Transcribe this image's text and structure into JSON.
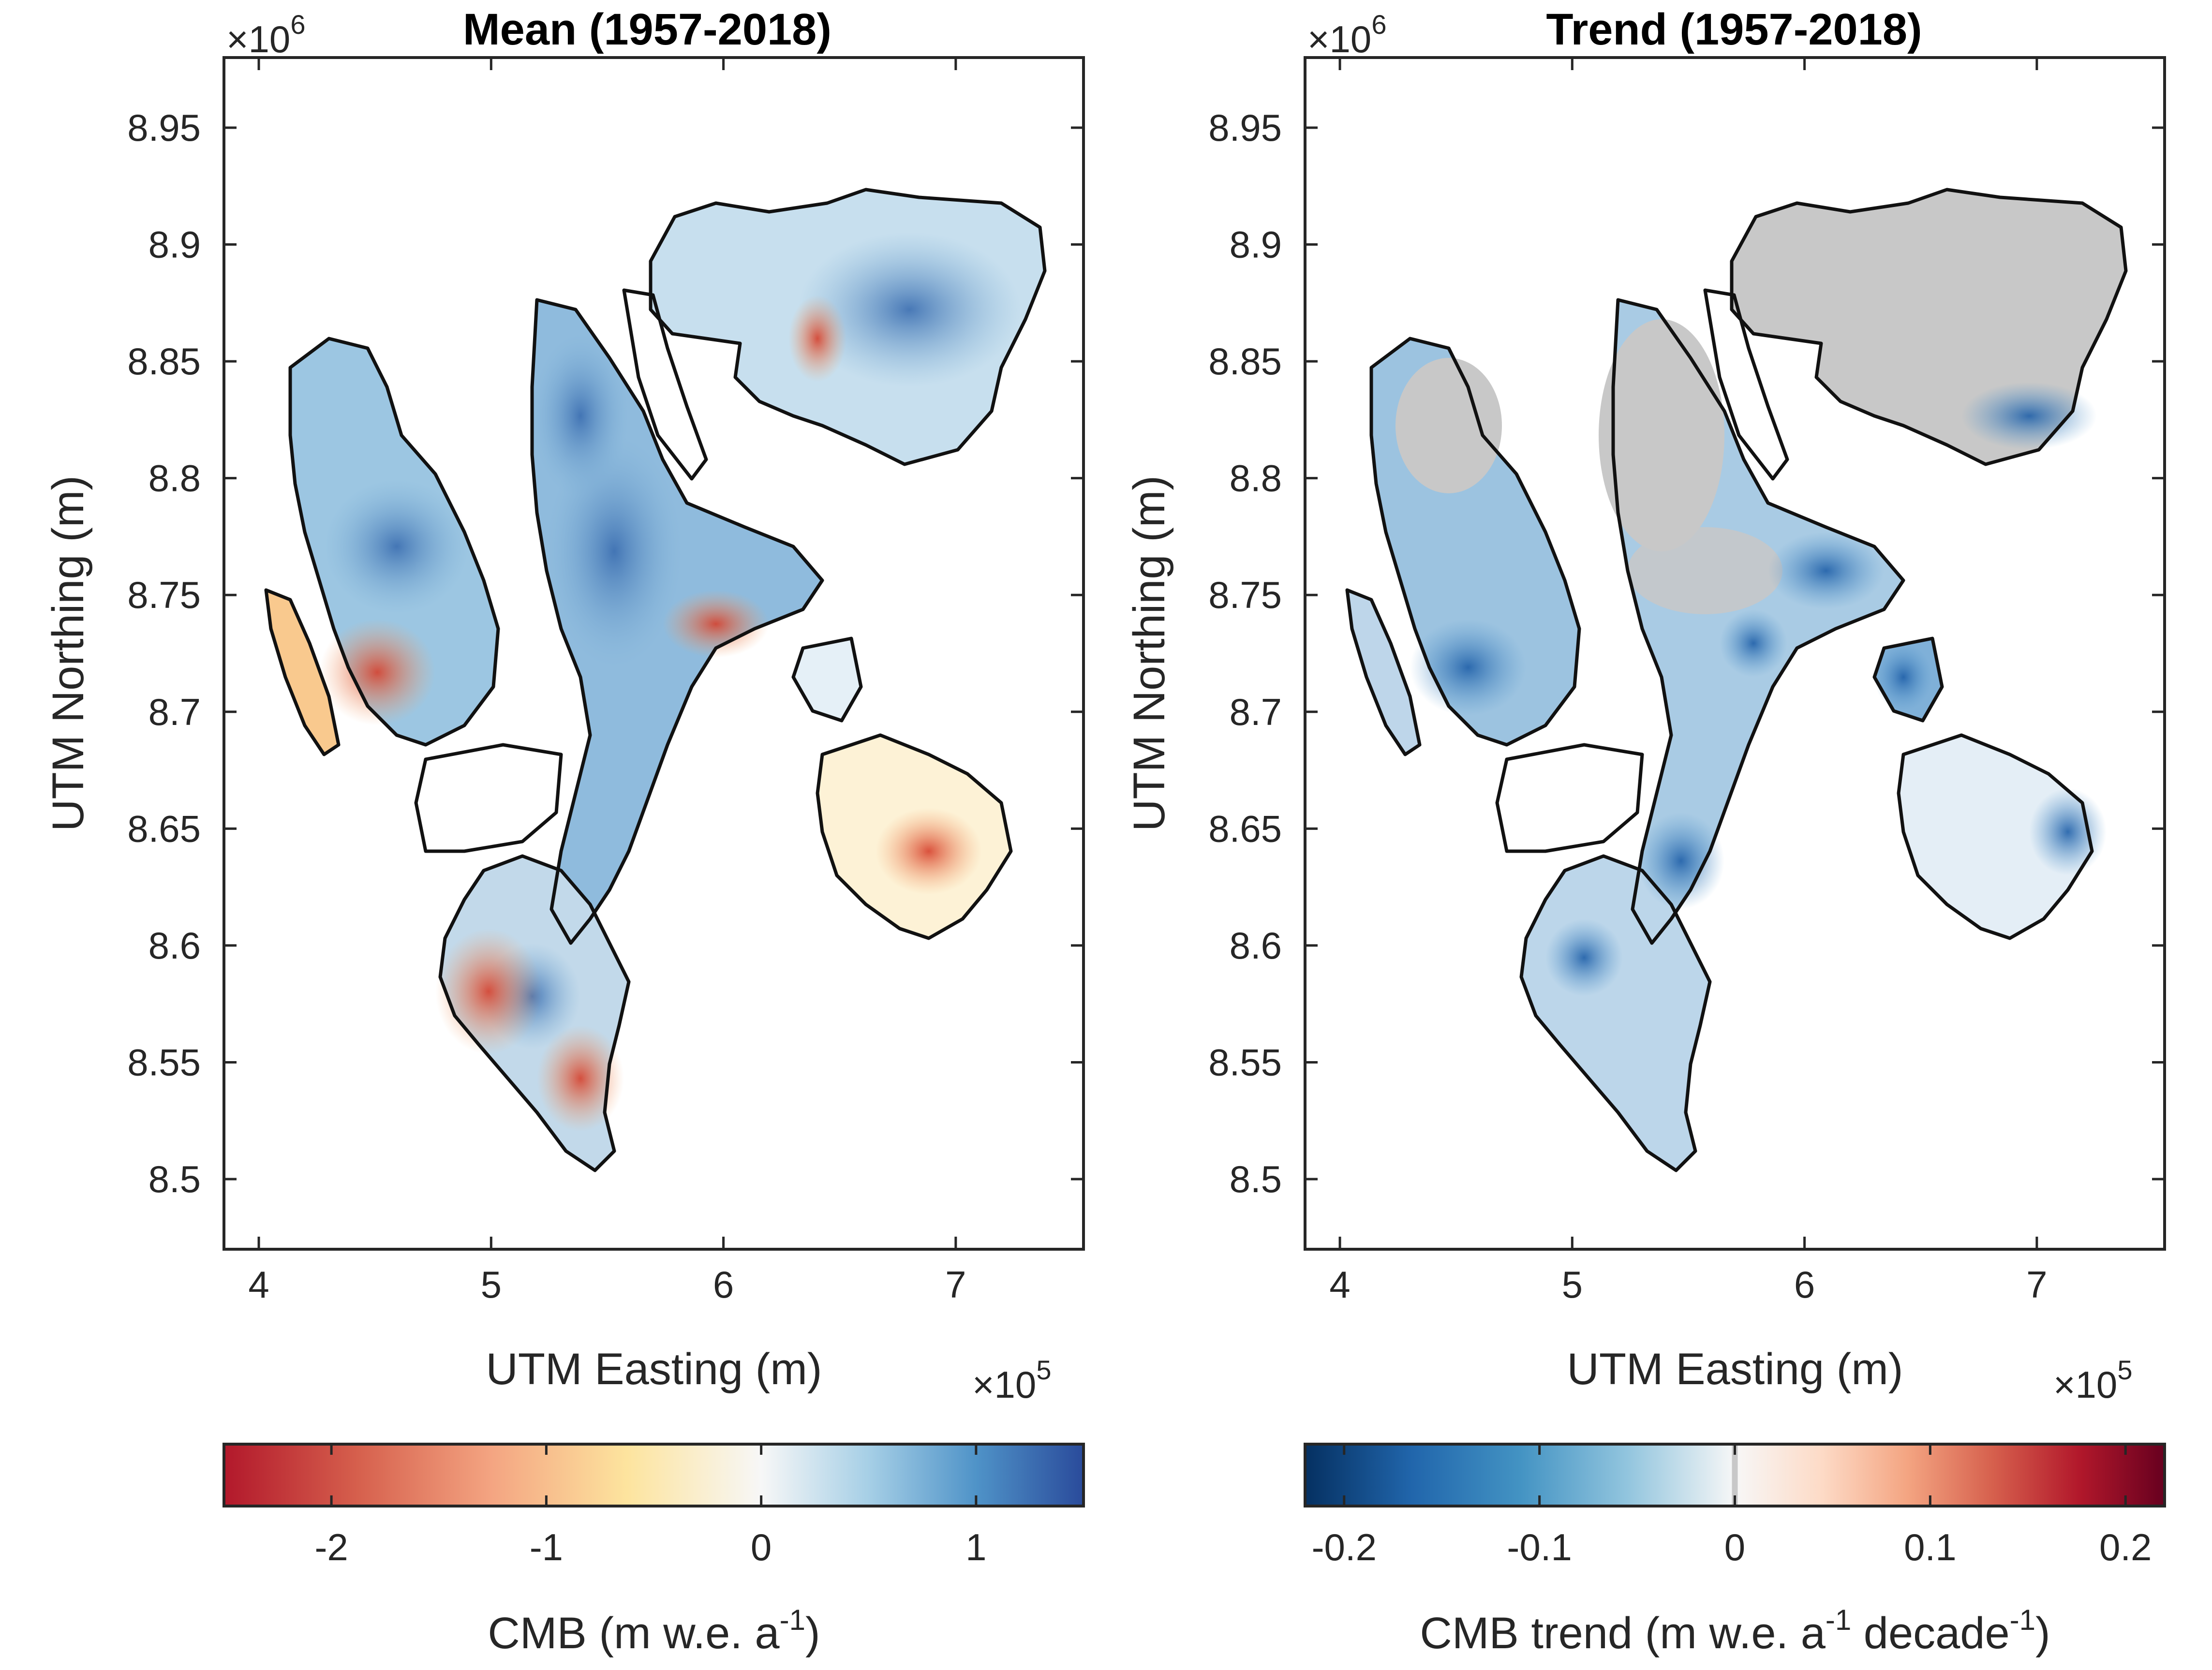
{
  "chart_data": [
    {
      "type": "heatmap",
      "title": "Mean (1957-2018)",
      "xlabel": "UTM Easting (m)",
      "ylabel": "UTM Northing (m)",
      "x_ticks": [
        "4",
        "5",
        "6",
        "7"
      ],
      "x_tick_values": [
        4,
        5,
        6,
        7
      ],
      "x_exponent_base": "×10",
      "x_exponent": "5",
      "y_ticks": [
        "8.5",
        "8.55",
        "8.6",
        "8.65",
        "8.7",
        "8.75",
        "8.8",
        "8.85",
        "8.9",
        "8.95"
      ],
      "y_tick_values": [
        8.5,
        8.55,
        8.6,
        8.65,
        8.7,
        8.75,
        8.8,
        8.85,
        8.9,
        8.95
      ],
      "y_exponent_base": "×10",
      "y_exponent": "6",
      "xlim": [
        3.85,
        7.55
      ],
      "ylim": [
        8.47,
        8.98
      ],
      "grid": false,
      "colorbar": {
        "label": "CMB (m w.e. a",
        "label_sup": "-1",
        "label_end": ")",
        "range": [
          -2.5,
          1.5
        ],
        "ticks": [
          "-2",
          "-1",
          "0",
          "1"
        ],
        "tick_values": [
          -2,
          -1,
          0,
          1
        ],
        "colors": [
          "#b2182b",
          "#d6604d",
          "#f4a582",
          "#fde49e",
          "#f7f7f7",
          "#a6cfe6",
          "#4f93c8",
          "#2a4b9b"
        ]
      }
    },
    {
      "type": "heatmap",
      "title": "Trend (1957-2018)",
      "xlabel": "UTM Easting (m)",
      "ylabel": "UTM Northing (m)",
      "x_ticks": [
        "4",
        "5",
        "6",
        "7"
      ],
      "x_tick_values": [
        4,
        5,
        6,
        7
      ],
      "x_exponent_base": "×10",
      "x_exponent": "5",
      "y_ticks": [
        "8.5",
        "8.55",
        "8.6",
        "8.65",
        "8.7",
        "8.75",
        "8.8",
        "8.85",
        "8.9",
        "8.95"
      ],
      "y_tick_values": [
        8.5,
        8.55,
        8.6,
        8.65,
        8.7,
        8.75,
        8.8,
        8.85,
        8.9,
        8.95
      ],
      "y_exponent_base": "×10",
      "y_exponent": "6",
      "xlim": [
        3.85,
        7.55
      ],
      "ylim": [
        8.47,
        8.98
      ],
      "grid": false,
      "colorbar": {
        "label": "CMB trend (m w.e. a",
        "label_sup": "-1",
        "label_mid": " decade",
        "label_sup2": "-1",
        "label_end": ")",
        "range": [
          -0.22,
          0.22
        ],
        "ticks": [
          "-0.2",
          "-0.1",
          "0",
          "0.1",
          "0.2"
        ],
        "tick_values": [
          -0.2,
          -0.1,
          0,
          0.1,
          0.2
        ],
        "colors": [
          "#053061",
          "#2166ac",
          "#4393c3",
          "#92c5de",
          "#f7f7f7",
          "#fddbc7",
          "#f4a582",
          "#d6604d",
          "#b2182b",
          "#67001f"
        ],
        "insignificant_color": "#c8c8c8"
      }
    }
  ]
}
